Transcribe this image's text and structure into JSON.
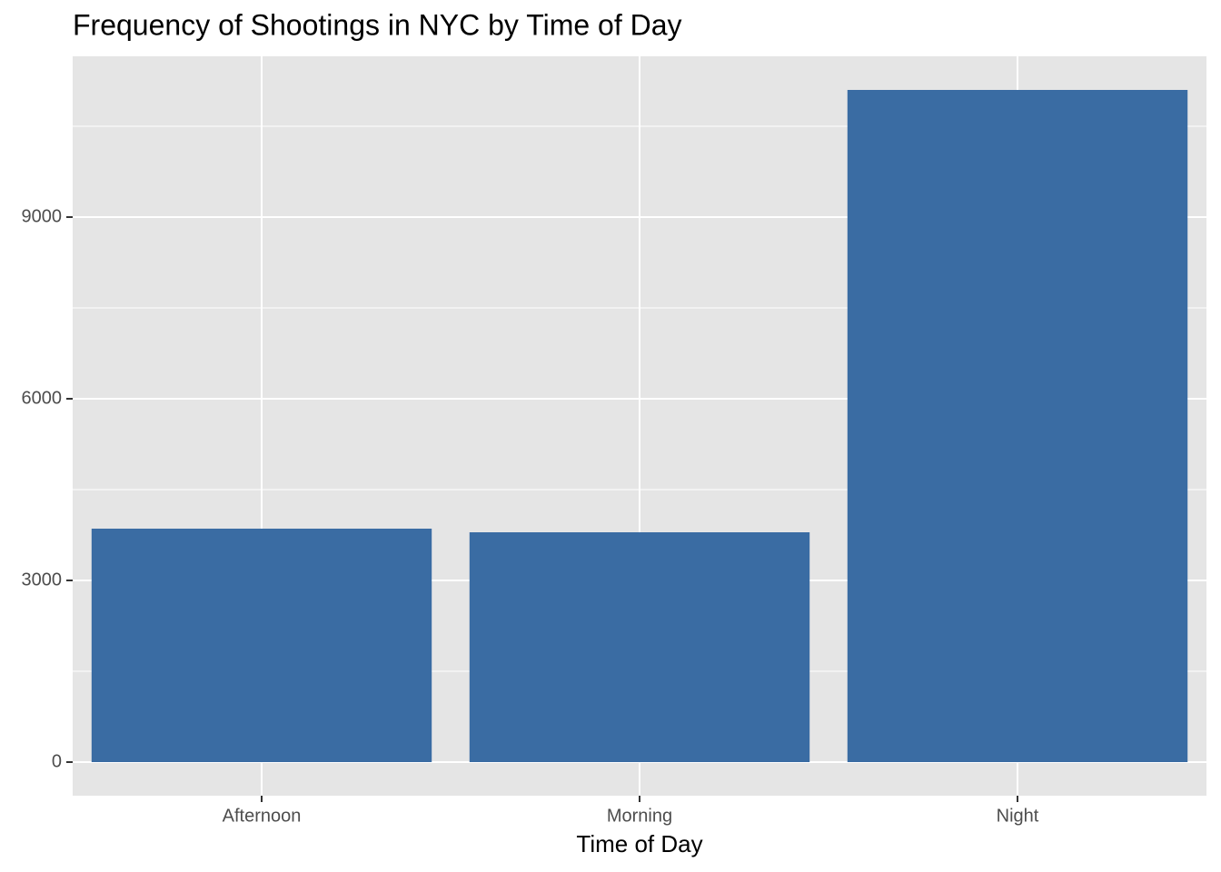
{
  "chart_data": {
    "type": "bar",
    "title": "Frequency of Shootings in NYC by Time of Day",
    "x_label": "Time of Day",
    "categories": [
      "Afternoon",
      "Morning",
      "Night"
    ],
    "values": [
      3855,
      3795,
      11100
    ],
    "color": "#3a6ca3",
    "ylim": [
      -555,
      11655
    ],
    "yticks": [
      0,
      3000,
      6000,
      9000
    ],
    "minor_yticks": [
      1500,
      4500,
      7500,
      10500
    ],
    "grid": true
  }
}
